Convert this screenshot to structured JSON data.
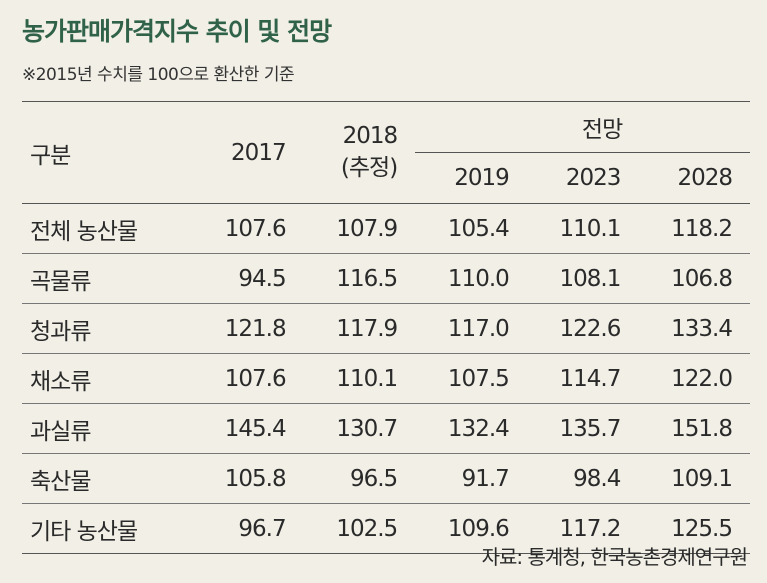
{
  "title": "농가판매가격지수 추이 및 전망",
  "subtitle": "※2015년 수치를 100으로 환산한 기준",
  "table": {
    "header_category": "구분",
    "header_2017": "2017",
    "header_2018": "2018",
    "header_2018_note": "(추정)",
    "header_group": "전망",
    "header_2019": "2019",
    "header_2023": "2023",
    "header_2028": "2028",
    "rows": [
      {
        "category": "전체 농산물",
        "v2017": "107.6",
        "v2018": "107.9",
        "v2019": "105.4",
        "v2023": "110.1",
        "v2028": "118.2"
      },
      {
        "category": "곡물류",
        "v2017": "94.5",
        "v2018": "116.5",
        "v2019": "110.0",
        "v2023": "108.1",
        "v2028": "106.8"
      },
      {
        "category": "청과류",
        "v2017": "121.8",
        "v2018": "117.9",
        "v2019": "117.0",
        "v2023": "122.6",
        "v2028": "133.4"
      },
      {
        "category": "채소류",
        "v2017": "107.6",
        "v2018": "110.1",
        "v2019": "107.5",
        "v2023": "114.7",
        "v2028": "122.0"
      },
      {
        "category": "과실류",
        "v2017": "145.4",
        "v2018": "130.7",
        "v2019": "132.4",
        "v2023": "135.7",
        "v2028": "151.8"
      },
      {
        "category": "축산물",
        "v2017": "105.8",
        "v2018": "96.5",
        "v2019": "91.7",
        "v2023": "98.4",
        "v2028": "109.1"
      },
      {
        "category": "기타 농산물",
        "v2017": "96.7",
        "v2018": "102.5",
        "v2019": "109.6",
        "v2023": "117.2",
        "v2028": "125.5"
      }
    ]
  },
  "source": "자료: 통계청, 한국농촌경제연구원",
  "colors": {
    "title": "#2f6248",
    "background": "#f1efe6"
  }
}
